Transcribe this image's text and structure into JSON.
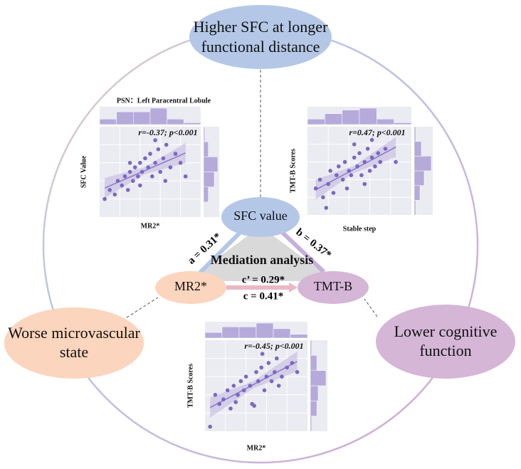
{
  "top": {
    "line1": "Higher SFC at longer",
    "line2": "functional distance"
  },
  "left": {
    "line1": "Worse microvascular",
    "line2": "state"
  },
  "right": {
    "line1": "Lower cognitive",
    "line2": "function"
  },
  "mediation": {
    "title": "Mediation analysis",
    "mediator": "SFC value",
    "predictor": "MR2*",
    "outcome": "TMT-B",
    "a": "a = 0.31*",
    "b": "b = 0.37*",
    "c_prime": "c’ = 0.29*",
    "c": "c = 0.41*"
  },
  "plots": [
    {
      "title": "PSN：Left Paracentral Lobule",
      "stats": "r=-0.37; p<0.001",
      "x_label": "MR2*",
      "y_label": "SFC Value",
      "xlim": [
        0,
        100
      ],
      "ylim": [
        0,
        100
      ],
      "x": [
        5,
        10,
        15,
        18,
        22,
        25,
        28,
        30,
        33,
        35,
        38,
        40,
        42,
        45,
        48,
        50,
        52,
        55,
        58,
        60,
        63,
        66,
        70,
        75,
        80,
        85,
        40,
        55,
        30,
        65
      ],
      "y": [
        20,
        30,
        25,
        40,
        35,
        45,
        30,
        50,
        40,
        55,
        45,
        60,
        50,
        65,
        55,
        70,
        45,
        60,
        75,
        50,
        65,
        80,
        55,
        70,
        60,
        45,
        35,
        85,
        60,
        40
      ]
    },
    {
      "stats": "r=0.47; p<0.001",
      "x_label": "Stable step",
      "y_label": "TMT-B Scores",
      "xlim": [
        0,
        100
      ],
      "ylim": [
        0,
        100
      ],
      "x": [
        8,
        12,
        15,
        20,
        22,
        25,
        28,
        30,
        34,
        36,
        40,
        42,
        45,
        48,
        50,
        52,
        55,
        58,
        60,
        62,
        65,
        68,
        70,
        75,
        85,
        18,
        45,
        55,
        38,
        62
      ],
      "y": [
        30,
        40,
        20,
        35,
        50,
        25,
        45,
        55,
        40,
        60,
        50,
        45,
        65,
        55,
        70,
        45,
        60,
        75,
        50,
        65,
        55,
        70,
        60,
        75,
        60,
        8,
        80,
        35,
        30,
        85
      ]
    },
    {
      "stats": "r=-0.45; p<0.001",
      "x_label": "MR2*",
      "y_label": "TMT-B Scores",
      "xlim": [
        0,
        100
      ],
      "ylim": [
        0,
        100
      ],
      "x": [
        5,
        10,
        14,
        18,
        22,
        25,
        28,
        32,
        35,
        38,
        40,
        44,
        46,
        50,
        52,
        55,
        58,
        60,
        62,
        65,
        68,
        70,
        75,
        80,
        85,
        90,
        48,
        56,
        30,
        72
      ],
      "y": [
        5,
        40,
        30,
        35,
        45,
        25,
        50,
        40,
        55,
        45,
        60,
        50,
        30,
        65,
        55,
        70,
        45,
        60,
        75,
        55,
        65,
        80,
        60,
        70,
        75,
        65,
        28,
        85,
        32,
        50
      ]
    }
  ]
}
